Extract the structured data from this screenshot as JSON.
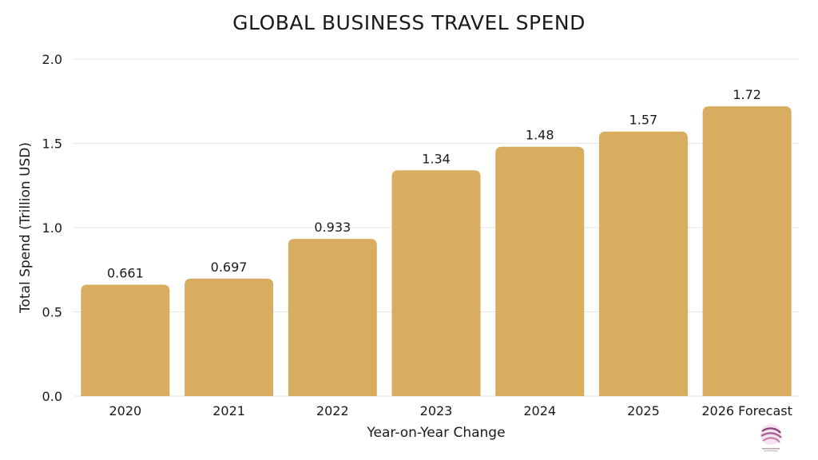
{
  "chart_data": {
    "type": "bar",
    "title": "GLOBAL BUSINESS TRAVEL SPEND",
    "xlabel": "Year-on-Year Change",
    "ylabel": "Total Spend (Trillion USD)",
    "categories": [
      "2020",
      "2021",
      "2022",
      "2023",
      "2024",
      "2025",
      "2026 Forecast"
    ],
    "values": [
      0.661,
      0.697,
      0.933,
      1.34,
      1.48,
      1.57,
      1.72
    ],
    "value_labels": [
      "0.661",
      "0.697",
      "0.933",
      "1.34",
      "1.48",
      "1.57",
      "1.72"
    ],
    "ylim": [
      0,
      2.0
    ],
    "yticks": [
      "0.0",
      "0.5",
      "1.0",
      "1.5",
      "2.0"
    ],
    "grid": true,
    "bar_color": "#d8ad5f",
    "grid_color": "#e6e6e6"
  },
  "logo": {
    "name": "globe-logo-icon",
    "color": "#8e3f7c"
  }
}
